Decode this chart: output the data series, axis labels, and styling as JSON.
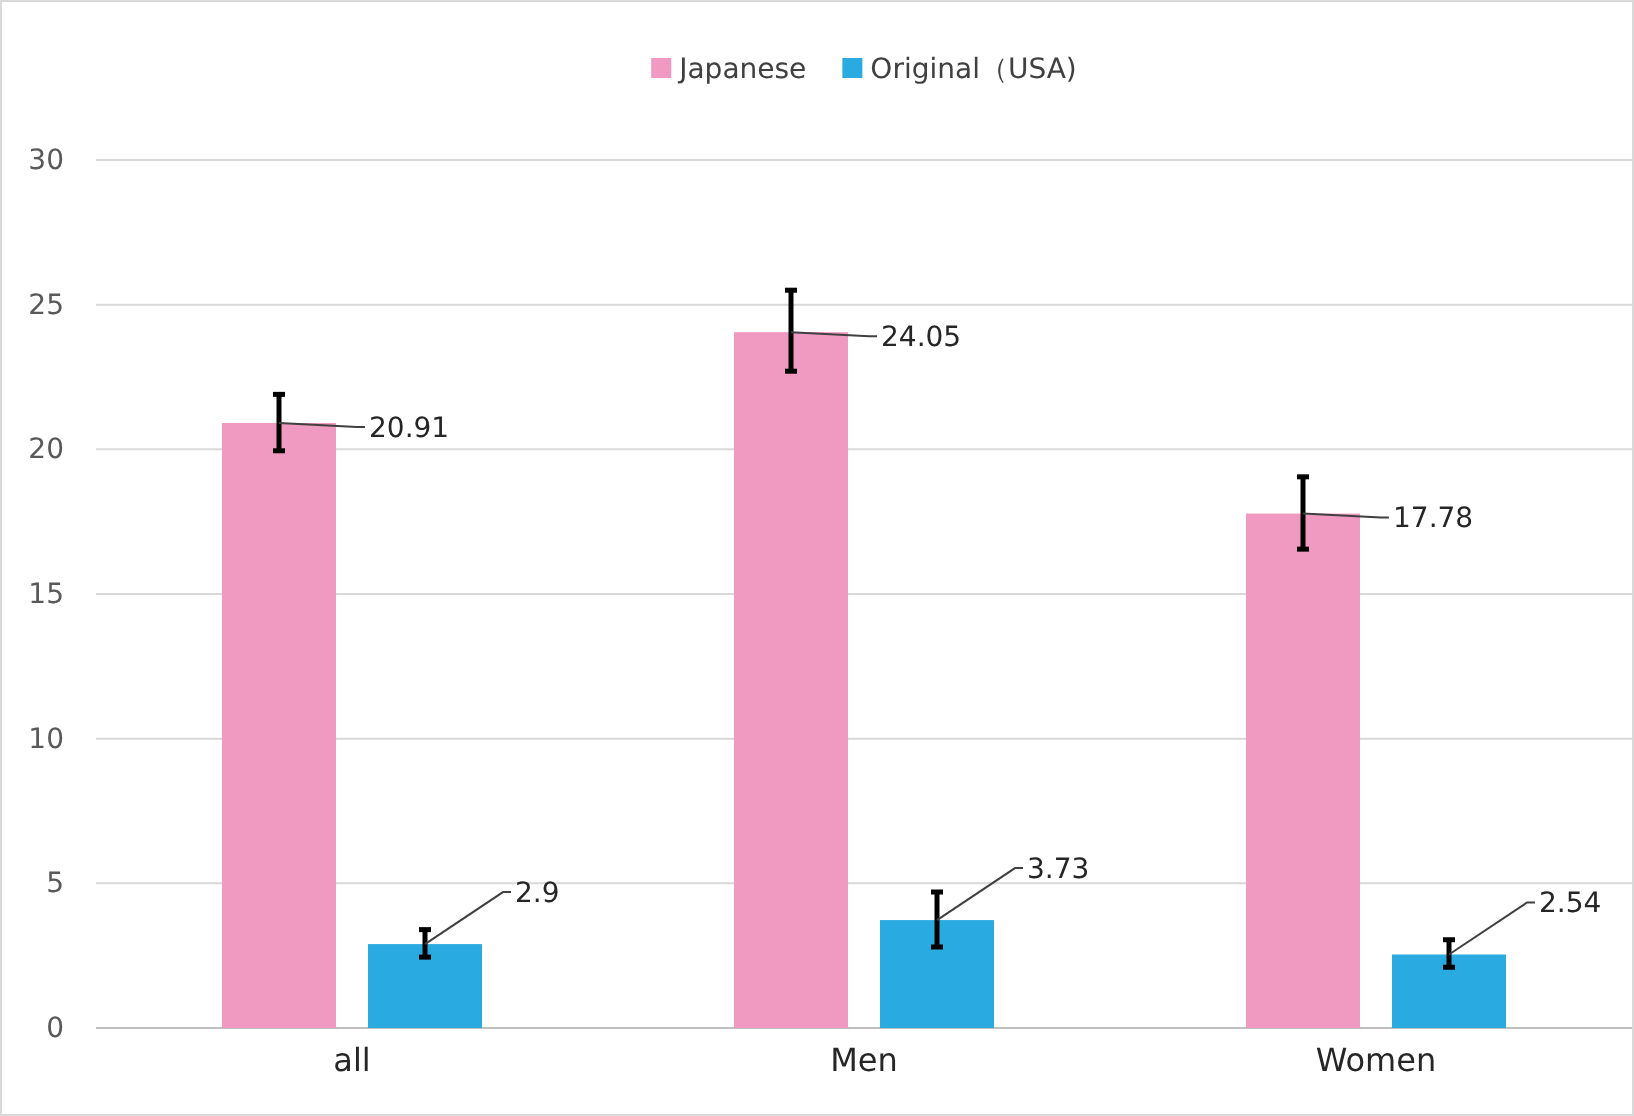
{
  "chart_data": {
    "type": "bar",
    "categories": [
      "all",
      "Men",
      "Women"
    ],
    "series": [
      {
        "name": "Japanese",
        "color": "#f09ac2",
        "values": [
          20.91,
          24.05,
          17.78
        ],
        "errors": [
          [
            19.95,
            21.9
          ],
          [
            22.7,
            25.5
          ],
          [
            16.55,
            19.05
          ]
        ]
      },
      {
        "name": "Original（USA)",
        "color": "#29abe2",
        "values": [
          2.9,
          3.73,
          2.54
        ],
        "errors": [
          [
            2.45,
            3.4
          ],
          [
            2.8,
            4.7
          ],
          [
            2.1,
            3.05
          ]
        ]
      }
    ],
    "ylim": [
      0,
      30
    ],
    "yticks": [
      0,
      5,
      10,
      15,
      20,
      25,
      30
    ],
    "grid": "y",
    "legend": "top",
    "data_labels": true
  }
}
